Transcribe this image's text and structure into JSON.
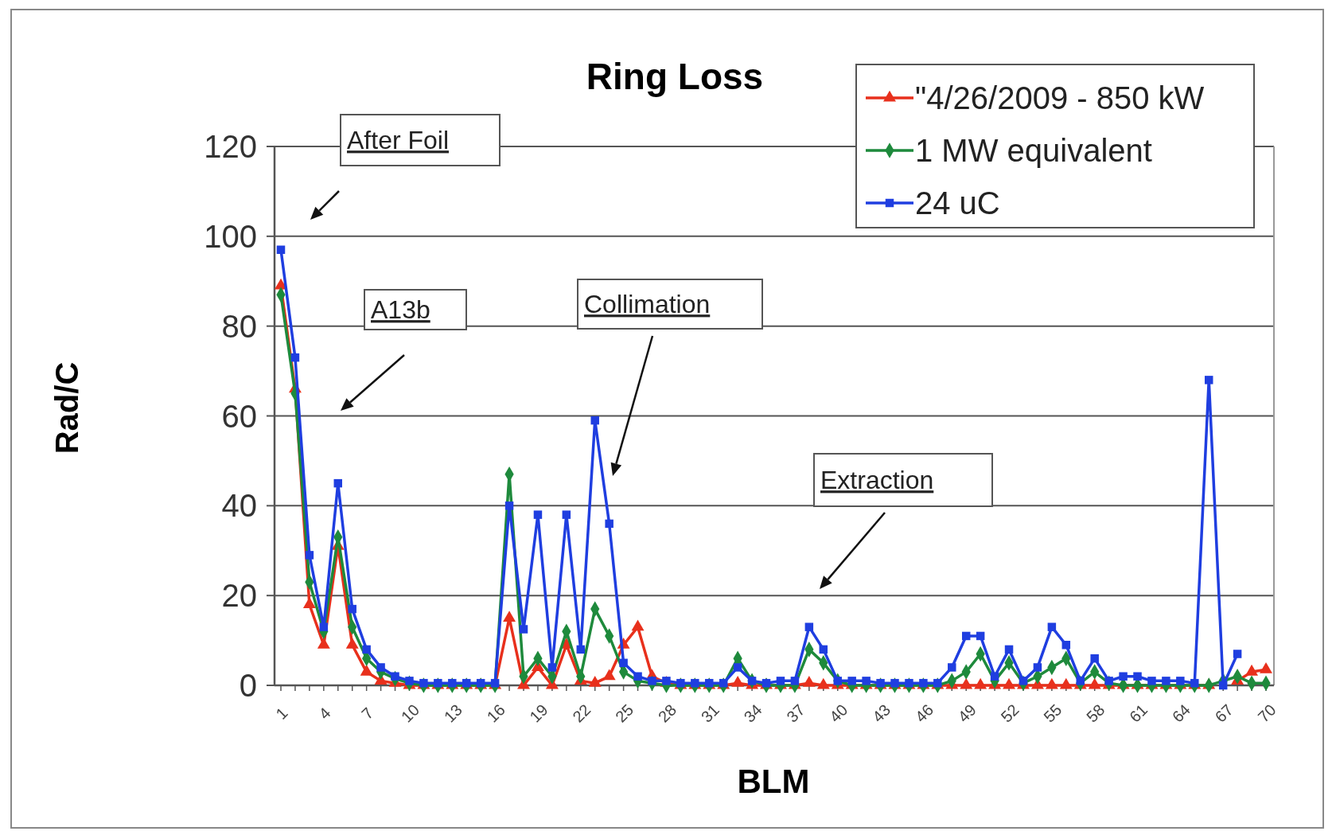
{
  "chart_data": {
    "type": "line",
    "title": "Ring Loss",
    "xlabel": "BLM",
    "ylabel": "Rad/C",
    "categories": [
      "1",
      null,
      null,
      "4",
      null,
      null,
      "7",
      null,
      null,
      "10",
      null,
      null,
      "13",
      null,
      null,
      "16",
      null,
      null,
      "19",
      null,
      null,
      "22",
      null,
      null,
      "25",
      null,
      null,
      "28",
      null,
      null,
      "31",
      null,
      null,
      "34",
      null,
      null,
      "37",
      null,
      null,
      "40",
      null,
      null,
      "43",
      null,
      null,
      "46",
      null,
      null,
      "49",
      null,
      null,
      "52",
      null,
      null,
      "55",
      null,
      null,
      "58",
      null,
      null,
      "61",
      null,
      null,
      "64",
      null,
      null,
      "67",
      null,
      null,
      "70"
    ],
    "series": [
      {
        "name": "\"4/26/2009 - 850 kW",
        "color": "#e8301c",
        "marker": "triangle",
        "values": [
          89,
          66,
          18,
          9,
          31,
          9,
          3,
          1,
          0.5,
          0,
          0,
          0,
          0,
          0,
          0,
          0,
          15,
          0,
          4,
          0,
          9,
          1,
          0.5,
          2,
          9,
          13,
          2,
          0.5,
          0,
          0,
          0,
          0,
          0.5,
          0,
          0,
          0,
          0,
          0.5,
          0,
          0,
          0,
          0,
          0,
          0,
          0,
          0,
          0,
          0,
          0,
          0,
          0,
          0,
          0,
          0,
          0,
          0,
          0,
          0,
          0,
          0,
          0,
          0,
          0,
          0,
          0,
          0,
          null,
          1,
          3,
          3.5
        ]
      },
      {
        "name": "1 MW equivalent",
        "color": "#1e8a3c",
        "marker": "diamond",
        "values": [
          87,
          65,
          23,
          12,
          33,
          13,
          6,
          3,
          1.5,
          0.5,
          0,
          0,
          0,
          0,
          0,
          0,
          47,
          2,
          6,
          2,
          12,
          2,
          17,
          11,
          3,
          1,
          0.5,
          0,
          0,
          0,
          0,
          0,
          6,
          1,
          0,
          0,
          0,
          8,
          5,
          1,
          0,
          0,
          0,
          0,
          0,
          0,
          0,
          1,
          3,
          7,
          1,
          5,
          0.5,
          2,
          4,
          6,
          0.5,
          3,
          0.5,
          0,
          0,
          0,
          0,
          0,
          0,
          0,
          1,
          2,
          0.5,
          0.5
        ]
      },
      {
        "name": "24 uC",
        "color": "#1f3ee0",
        "marker": "square",
        "values": [
          97,
          73,
          29,
          13,
          45,
          17,
          8,
          4,
          2,
          1,
          0.5,
          0.5,
          0.5,
          0.5,
          0.5,
          0.5,
          40,
          12.5,
          38,
          4,
          38,
          8,
          59,
          36,
          5,
          2,
          1,
          1,
          0.5,
          0.5,
          0.5,
          0.5,
          4,
          1,
          0.5,
          1,
          1,
          13,
          8,
          1,
          1,
          1,
          0.5,
          0.5,
          0.5,
          0.5,
          0.5,
          4,
          11,
          11,
          2,
          8,
          1,
          4,
          13,
          9,
          1,
          6,
          1,
          2,
          2,
          1,
          1,
          1,
          0.5,
          68,
          0,
          7,
          null,
          null
        ]
      }
    ],
    "ylim": [
      0,
      120
    ],
    "yticks": [
      0,
      20,
      40,
      60,
      80,
      100,
      120
    ],
    "grid": "y",
    "legend": "top right",
    "line_style": "solid",
    "annotations": [
      "After Foil",
      "A13b",
      "Collimation",
      "Extraction"
    ]
  }
}
